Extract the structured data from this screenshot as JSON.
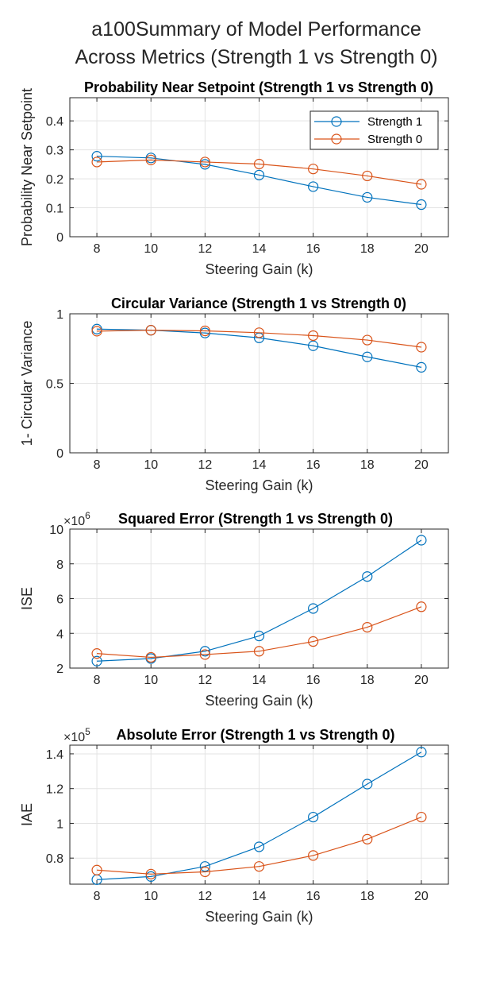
{
  "figure": {
    "title_line1": "a100Summary of Model Performance",
    "title_line2": "Across Metrics (Strength 1 vs Strength 0)"
  },
  "colors": {
    "strength1": "#0072BD",
    "strength0": "#D95319"
  },
  "chart_data": [
    {
      "type": "line",
      "title": "Probability Near Setpoint (Strength 1 vs Strength 0)",
      "xlabel": "Steering Gain (k)",
      "ylabel": "Probability Near Setpoint",
      "x": [
        8,
        10,
        12,
        14,
        16,
        18,
        20
      ],
      "xlim": [
        7,
        21
      ],
      "ylim": [
        0,
        0.48
      ],
      "yticks": [
        0,
        0.1,
        0.2,
        0.3,
        0.4
      ],
      "ytick_labels": [
        "0",
        "0.1",
        "0.2",
        "0.3",
        "0.4"
      ],
      "exponent": "",
      "legend": "top-right",
      "grid": true,
      "series": [
        {
          "name": "Strength 1",
          "values": [
            0.278,
            0.272,
            0.25,
            0.213,
            0.173,
            0.136,
            0.111
          ]
        },
        {
          "name": "Strength 0",
          "values": [
            0.258,
            0.265,
            0.258,
            0.251,
            0.234,
            0.21,
            0.181
          ]
        }
      ]
    },
    {
      "type": "line",
      "title": "Circular Variance (Strength 1 vs Strength 0)",
      "xlabel": "Steering Gain (k)",
      "ylabel": "1- Circular Variance",
      "x": [
        8,
        10,
        12,
        14,
        16,
        18,
        20
      ],
      "xlim": [
        7,
        21
      ],
      "ylim": [
        0,
        1
      ],
      "yticks": [
        0,
        0.5,
        1
      ],
      "ytick_labels": [
        "0",
        "0.5",
        "1"
      ],
      "exponent": "",
      "grid": true,
      "series": [
        {
          "name": "Strength 1",
          "values": [
            0.89,
            0.882,
            0.862,
            0.827,
            0.77,
            0.69,
            0.615
          ]
        },
        {
          "name": "Strength 0",
          "values": [
            0.875,
            0.882,
            0.877,
            0.864,
            0.843,
            0.811,
            0.76
          ]
        }
      ]
    },
    {
      "type": "line",
      "title": "Squared Error (Strength 1 vs Strength 0)",
      "xlabel": "Steering Gain (k)",
      "ylabel": "ISE",
      "x": [
        8,
        10,
        12,
        14,
        16,
        18,
        20
      ],
      "xlim": [
        7,
        21
      ],
      "ylim": [
        2000000,
        10000000
      ],
      "yticks": [
        2000000,
        4000000,
        6000000,
        8000000,
        10000000
      ],
      "ytick_labels": [
        "2",
        "4",
        "6",
        "8",
        "10"
      ],
      "exponent": "×10",
      "exponent_power": "6",
      "grid": true,
      "series": [
        {
          "name": "Strength 1",
          "values": [
            2400000,
            2550000,
            2970000,
            3850000,
            5430000,
            7270000,
            9360000
          ]
        },
        {
          "name": "Strength 0",
          "values": [
            2840000,
            2620000,
            2780000,
            2970000,
            3530000,
            4350000,
            5530000
          ]
        }
      ]
    },
    {
      "type": "line",
      "title": "Absolute Error (Strength 1 vs Strength 0)",
      "xlabel": "Steering Gain (k)",
      "ylabel": "IAE",
      "x": [
        8,
        10,
        12,
        14,
        16,
        18,
        20
      ],
      "xlim": [
        7,
        21
      ],
      "ylim": [
        65000,
        145000
      ],
      "yticks": [
        80000,
        100000,
        120000,
        140000
      ],
      "ytick_labels": [
        "0.8",
        "1",
        "1.2",
        "1.4"
      ],
      "exponent": "×10",
      "exponent_power": "5",
      "grid": true,
      "series": [
        {
          "name": "Strength 1",
          "values": [
            67600,
            69400,
            75200,
            86500,
            103600,
            122600,
            141000
          ]
        },
        {
          "name": "Strength 0",
          "values": [
            73100,
            70800,
            72100,
            75200,
            81500,
            90900,
            103600
          ]
        }
      ]
    }
  ]
}
